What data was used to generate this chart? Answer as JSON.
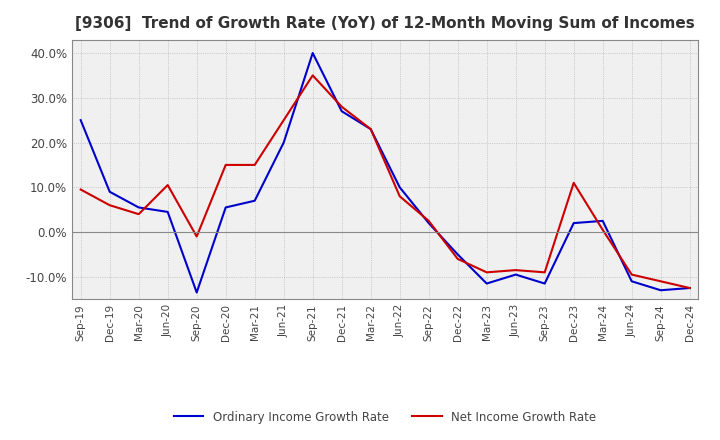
{
  "title": "[9306]  Trend of Growth Rate (YoY) of 12-Month Moving Sum of Incomes",
  "title_fontsize": 11,
  "ylim": [
    -15,
    43
  ],
  "yticks": [
    -10,
    0,
    10,
    20,
    30,
    40
  ],
  "background_color": "#ffffff",
  "plot_bg_color": "#f0f0f0",
  "grid_color": "#aaaaaa",
  "ordinary_color": "#0000cc",
  "net_color": "#cc0000",
  "legend_labels": [
    "Ordinary Income Growth Rate",
    "Net Income Growth Rate"
  ],
  "x_labels": [
    "Sep-19",
    "Dec-19",
    "Mar-20",
    "Jun-20",
    "Sep-20",
    "Dec-20",
    "Mar-21",
    "Jun-21",
    "Sep-21",
    "Dec-21",
    "Mar-22",
    "Jun-22",
    "Sep-22",
    "Dec-22",
    "Mar-23",
    "Jun-23",
    "Sep-23",
    "Dec-23",
    "Mar-24",
    "Jun-24",
    "Sep-24",
    "Dec-24"
  ],
  "ordinary_income_growth": [
    25.0,
    9.0,
    5.5,
    4.5,
    -13.5,
    5.5,
    7.0,
    20.0,
    40.0,
    27.0,
    23.0,
    10.0,
    2.0,
    -5.0,
    -11.5,
    -9.5,
    -11.5,
    2.0,
    2.5,
    -11.0,
    -13.0,
    -12.5
  ],
  "net_income_growth": [
    9.5,
    6.0,
    4.0,
    10.5,
    -1.0,
    15.0,
    15.0,
    25.0,
    35.0,
    28.0,
    23.0,
    8.0,
    2.5,
    -6.0,
    -9.0,
    -8.5,
    -9.0,
    11.0,
    0.5,
    -9.5,
    -11.0,
    -12.5
  ]
}
